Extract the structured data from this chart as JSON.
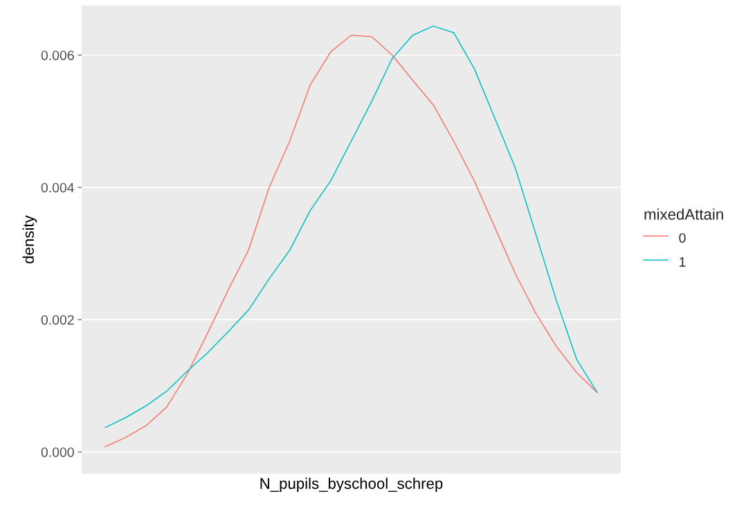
{
  "chart_data": {
    "type": "line",
    "xlabel": "N_pupils_byschool_schrep",
    "ylabel": "density",
    "legend_title": "mixedAttain",
    "categories": [
      null,
      null,
      null,
      null,
      null,
      null,
      null,
      null,
      null,
      null,
      null,
      null,
      null,
      null,
      null,
      null,
      null,
      null,
      null,
      null,
      null,
      null,
      null,
      null,
      null
    ],
    "series": [
      {
        "name": "0",
        "color": "#f8766d",
        "values": [
          8e-05,
          0.00022,
          0.0004,
          0.00068,
          0.00118,
          0.0018,
          0.00245,
          0.00306,
          0.004,
          0.0047,
          0.00555,
          0.00605,
          0.0063,
          0.00628,
          0.006,
          0.00562,
          0.00525,
          0.0047,
          0.0041,
          0.0034,
          0.0027,
          0.0021,
          0.0016,
          0.0012,
          0.0009
        ]
      },
      {
        "name": "1",
        "color": "#00bfc4",
        "values": [
          0.00037,
          0.00052,
          0.0007,
          0.00092,
          0.00122,
          0.0015,
          0.00182,
          0.00215,
          0.00262,
          0.00305,
          0.00365,
          0.0041,
          0.0047,
          0.0053,
          0.00595,
          0.0063,
          0.00644,
          0.00634,
          0.0058,
          0.00505,
          0.0043,
          0.0033,
          0.0023,
          0.0014,
          0.0009
        ]
      }
    ],
    "ylim": [
      -0.00033,
      0.00675
    ],
    "yticks": [
      {
        "value": 0,
        "label": "0.000"
      },
      {
        "value": 0.002,
        "label": "0.002"
      },
      {
        "value": 0.004,
        "label": "0.004"
      },
      {
        "value": 0.006,
        "label": "0.006"
      }
    ],
    "grid": "y",
    "legend": "right",
    "tick_labels": "y",
    "marker": "none",
    "line_style": "solid"
  }
}
